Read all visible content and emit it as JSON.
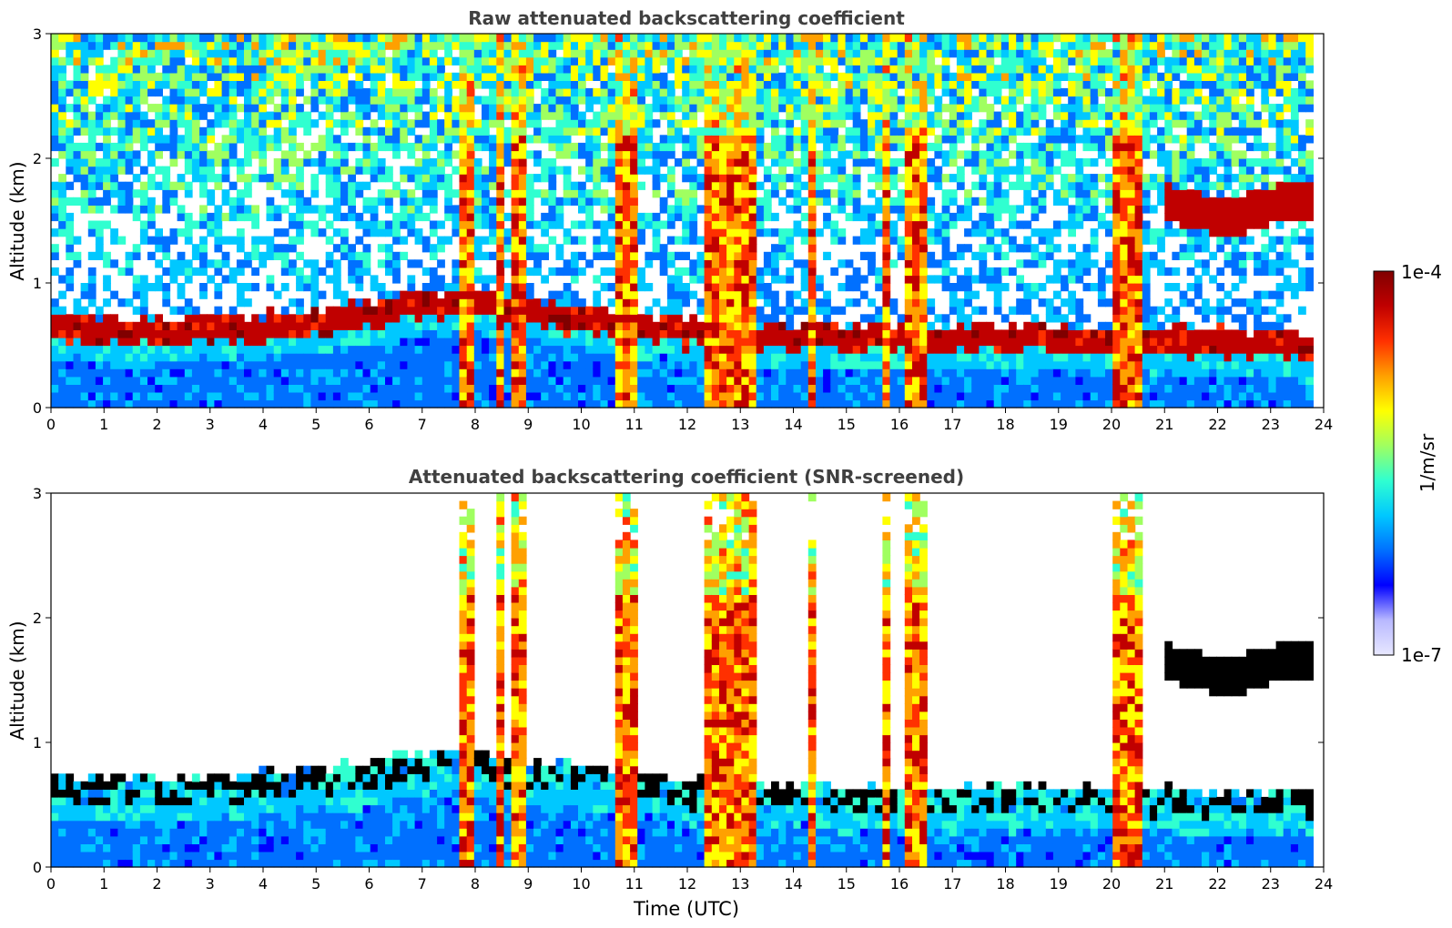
{
  "chart_data": [
    {
      "type": "heatmap",
      "title": "Raw attenuated backscattering coefficient",
      "xlabel": "",
      "ylabel": "Altitude (km)",
      "xlim": [
        0,
        24
      ],
      "ylim": [
        0,
        3
      ],
      "xticks": [
        "0",
        "1",
        "2",
        "3",
        "4",
        "5",
        "6",
        "7",
        "8",
        "9",
        "10",
        "11",
        "12",
        "13",
        "14",
        "15",
        "16",
        "17",
        "18",
        "19",
        "20",
        "21",
        "22",
        "23",
        "24"
      ],
      "yticks": [
        "0",
        "1",
        "2",
        "3"
      ],
      "description_series": {
        "boundary_layer_top_km": [
          {
            "t": 0,
            "z": 0.65
          },
          {
            "t": 2,
            "z": 0.6
          },
          {
            "t": 4,
            "z": 0.65
          },
          {
            "t": 6,
            "z": 0.75
          },
          {
            "t": 7.5,
            "z": 0.85
          },
          {
            "t": 12,
            "z": 0.6
          },
          {
            "t": 16,
            "z": 0.55
          },
          {
            "t": 20,
            "z": 0.55
          },
          {
            "t": 23.8,
            "z": 0.5
          }
        ],
        "precipitation_columns_utc": [
          [
            7.75,
            8.0
          ],
          [
            8.35,
            8.55
          ],
          [
            8.65,
            8.9
          ],
          [
            10.7,
            11.05
          ],
          [
            12.3,
            13.3
          ],
          [
            14.3,
            14.45
          ],
          [
            15.7,
            15.85
          ],
          [
            16.05,
            16.5
          ],
          [
            20.05,
            20.55
          ]
        ],
        "elevated_cloud_layer": {
          "t_start": 21.0,
          "t_end": 23.8,
          "z_km": [
            1.45,
            1.75
          ]
        }
      }
    },
    {
      "type": "heatmap",
      "title": "Attenuated backscattering coefficient (SNR-screened)",
      "xlabel": "Time (UTC)",
      "ylabel": "Altitude (km)",
      "xlim": [
        0,
        24
      ],
      "ylim": [
        0,
        3
      ],
      "xticks": [
        "0",
        "1",
        "2",
        "3",
        "4",
        "5",
        "6",
        "7",
        "8",
        "9",
        "10",
        "11",
        "12",
        "13",
        "14",
        "15",
        "16",
        "17",
        "18",
        "19",
        "20",
        "21",
        "22",
        "23",
        "24"
      ],
      "yticks": [
        "0",
        "1",
        "2",
        "3"
      ]
    }
  ],
  "colorbar": {
    "label": "1/m/sr",
    "max_label": "1e-4",
    "min_label": "1e-7",
    "scale": "log",
    "range": [
      1e-07,
      0.0001
    ],
    "colors": [
      "#e8e8ff",
      "#b8b8ff",
      "#0000ff",
      "#0070ff",
      "#00c8ff",
      "#30ffd0",
      "#a0ff60",
      "#ffff00",
      "#ffa000",
      "#ff3000",
      "#c00000",
      "#800000"
    ]
  }
}
